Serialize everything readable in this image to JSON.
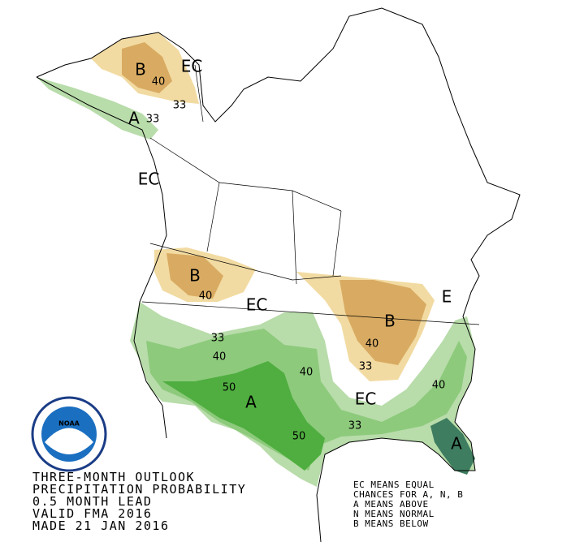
{
  "logo": {
    "text": "NOAA"
  },
  "title": [
    "THREE-MONTH OUTLOOK",
    "PRECIPITATION PROBABILITY",
    "0.5 MONTH LEAD",
    "VALID FMA 2016",
    "MADE 21 JAN 2016"
  ],
  "legend": [
    "EC MEANS EQUAL",
    "CHANCES FOR A, N, B",
    "A MEANS ABOVE",
    "N MEANS NORMAL",
    "B MEANS BELOW"
  ],
  "map_labels": [
    "B",
    "40",
    "EC",
    "33",
    "A",
    "33",
    "EC",
    "B",
    "40",
    "EC",
    "B",
    "40",
    "33",
    "E",
    "EC",
    "33",
    "40",
    "33",
    "40",
    "50",
    "A",
    "40",
    "50",
    "A"
  ]
}
